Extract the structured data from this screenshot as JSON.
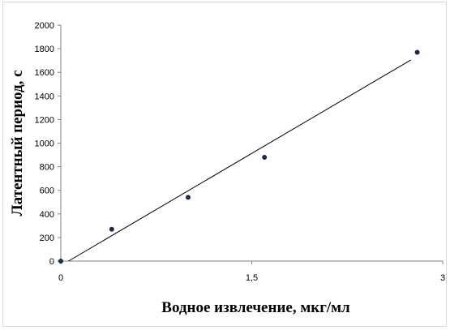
{
  "chart_data": {
    "type": "scatter",
    "title": "",
    "xlabel": "Водное извлечение, мкг/мл",
    "ylabel": "Латентный период, с",
    "xlim": [
      0,
      3
    ],
    "ylim": [
      0,
      2000
    ],
    "x_ticks": [
      {
        "value": 0,
        "label": "0"
      },
      {
        "value": 1.5,
        "label": "1,5"
      },
      {
        "value": 3,
        "label": "3"
      }
    ],
    "y_ticks": [
      {
        "value": 0,
        "label": "0"
      },
      {
        "value": 200,
        "label": "200"
      },
      {
        "value": 400,
        "label": "400"
      },
      {
        "value": 600,
        "label": "600"
      },
      {
        "value": 800,
        "label": "800"
      },
      {
        "value": 1000,
        "label": "1000"
      },
      {
        "value": 1200,
        "label": "1200"
      },
      {
        "value": 1400,
        "label": "1400"
      },
      {
        "value": 1600,
        "label": "1600"
      },
      {
        "value": 1800,
        "label": "1800"
      },
      {
        "value": 2000,
        "label": "2000"
      }
    ],
    "series": [
      {
        "x": [
          0,
          0.4,
          1.0,
          1.6,
          2.8
        ],
        "y": [
          0,
          270,
          540,
          880,
          1770
        ]
      }
    ],
    "trendline": {
      "type": "linear",
      "x": [
        0.06,
        2.75
      ],
      "y": [
        0,
        1705
      ]
    },
    "grid": false,
    "legend": "none",
    "colors": {
      "points": "#1f2a44",
      "trendline": "#000000",
      "axes": "#808080"
    }
  }
}
